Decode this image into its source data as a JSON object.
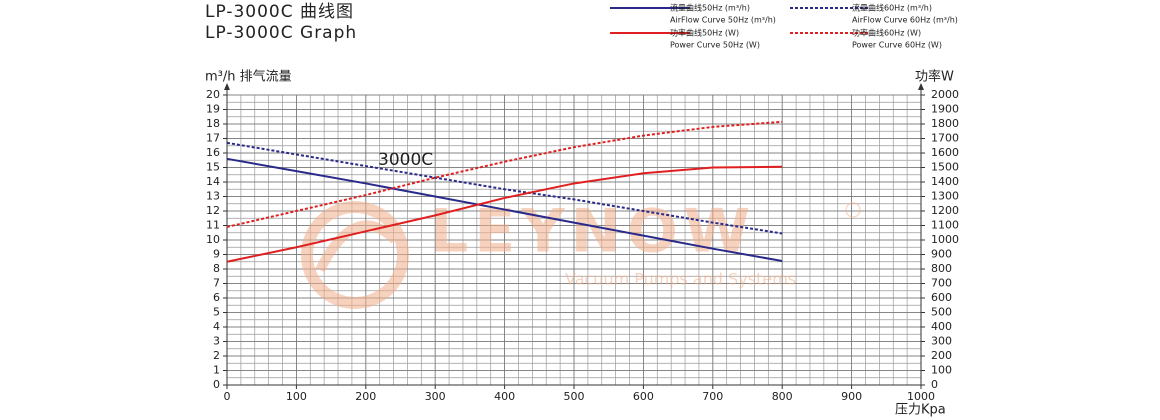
{
  "chart_data": {
    "type": "line",
    "title": "LP-3000C   曲线图",
    "subtitle": "LP-3000C   Graph",
    "y_label": "m³/h 排气流量",
    "y2_label": "功率W",
    "x_label": "压力Kpa",
    "annotation": "3000C",
    "watermark": "LEYNOW",
    "watermark_sub": "Vacuum Pumps and Systems",
    "x": [
      0,
      100,
      200,
      300,
      400,
      500,
      600,
      700,
      800
    ],
    "series": [
      {
        "name": "流量曲线50Hz (m³/h)",
        "name_en": "AirFlow Curve 50Hz (m³/h)",
        "color": "#2a2a8a",
        "dashed": false,
        "values": [
          15.6,
          14.75,
          13.9,
          13.0,
          12.1,
          11.2,
          10.3,
          9.4,
          8.55
        ]
      },
      {
        "name": "流量曲线60Hz (m³/h)",
        "name_en": "AirFlow Curve 60Hz (m³/h)",
        "color": "#2a2a8a",
        "dashed": true,
        "values": [
          16.7,
          15.9,
          15.1,
          14.3,
          13.5,
          12.8,
          12.0,
          11.2,
          10.45
        ]
      },
      {
        "name": "功率曲线50Hz (W)",
        "name_en": "Power Curve 50Hz (W)",
        "color": "#e02020",
        "dashed": false,
        "axis": "y2",
        "values": [
          850,
          950,
          1060,
          1170,
          1290,
          1390,
          1460,
          1500,
          1505
        ]
      },
      {
        "name": "功率曲线60Hz (W)",
        "name_en": "Power Curve 60Hz (W)",
        "color": "#e02020",
        "dashed": true,
        "axis": "y2",
        "values": [
          1090,
          1200,
          1310,
          1430,
          1540,
          1640,
          1720,
          1780,
          1815
        ]
      }
    ],
    "xlim": [
      0,
      1000
    ],
    "xticks": [
      0,
      100,
      200,
      300,
      400,
      500,
      600,
      700,
      800,
      900,
      1000
    ],
    "ylim": [
      0,
      20
    ],
    "yticks": [
      0,
      1,
      2,
      3,
      4,
      5,
      6,
      7,
      8,
      9,
      10,
      11,
      12,
      13,
      14,
      15,
      16,
      17,
      18,
      19,
      20
    ],
    "y2lim": [
      0,
      2000
    ],
    "y2ticks": [
      0,
      100,
      200,
      300,
      400,
      500,
      600,
      700,
      800,
      900,
      1000,
      1100,
      1200,
      1300,
      1400,
      1500,
      1600,
      1700,
      1800,
      1900,
      2000
    ],
    "grid": true,
    "minor_grid": {
      "x": 20,
      "y": 0.5
    }
  }
}
